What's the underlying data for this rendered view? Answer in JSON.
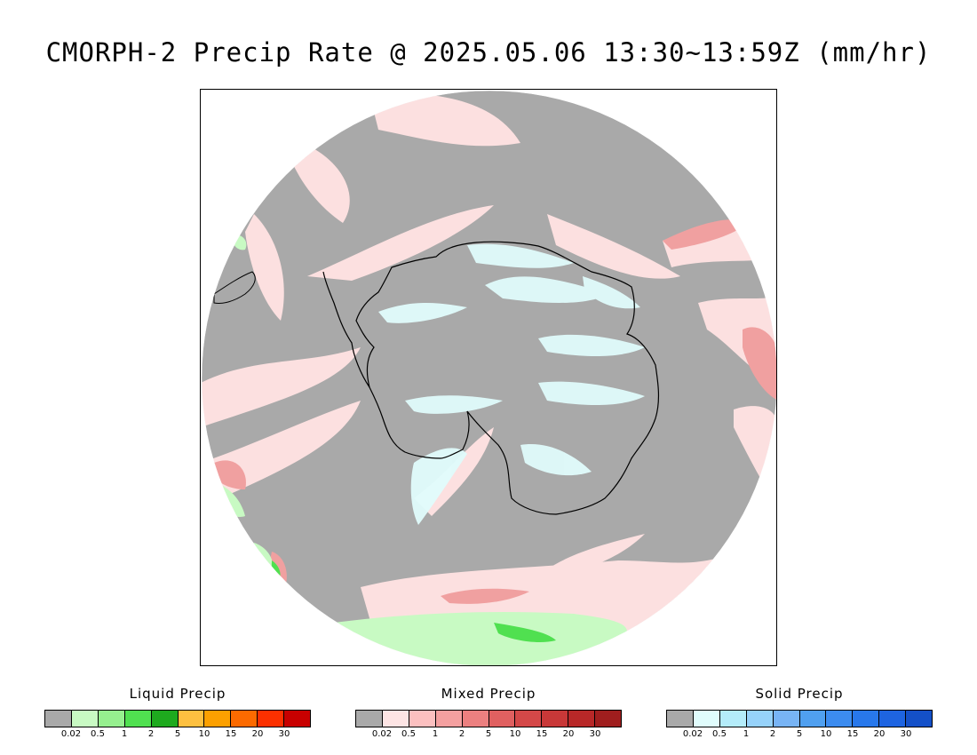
{
  "title": "CMORPH-2 Precip Rate @ 2025.05.06 13:30~13:59Z (mm/hr)",
  "map": {
    "projection": "south-polar-stereographic",
    "colors": {
      "no_precip": "#a9a9a9",
      "liquid_light": "#c8fac3",
      "liquid_mid": "#86ef80",
      "liquid_dark": "#22b022",
      "mixed_light": "#fce0e0",
      "mixed_mid": "#f0a0a0",
      "mixed_dark": "#e06060",
      "solid_light": "#e0fcfc",
      "coastline": "#000000"
    }
  },
  "legends": [
    {
      "title": "Liquid Precip",
      "colors": [
        "#a9a9a9",
        "#c8fac3",
        "#96f08f",
        "#50e050",
        "#1eaa1e",
        "#fdc040",
        "#fca000",
        "#fc6a00",
        "#fc3000",
        "#c80000"
      ],
      "ticks": [
        "0.02",
        "0.5",
        "1",
        "2",
        "5",
        "10",
        "15",
        "20",
        "30"
      ]
    },
    {
      "title": "Mixed Precip",
      "colors": [
        "#a9a9a9",
        "#fde4e4",
        "#fcc0c0",
        "#f4a0a0",
        "#ec8080",
        "#e06060",
        "#d44848",
        "#c83838",
        "#b82828",
        "#a01e1e"
      ],
      "ticks": [
        "0.02",
        "0.5",
        "1",
        "2",
        "5",
        "10",
        "15",
        "20",
        "30"
      ]
    },
    {
      "title": "Solid Precip",
      "colors": [
        "#a9a9a9",
        "#e0fcfc",
        "#b4ecfa",
        "#96d2fa",
        "#78b4f5",
        "#50a0f0",
        "#3c8cf0",
        "#2878eb",
        "#1e64e1",
        "#1450c8"
      ],
      "ticks": [
        "0.02",
        "0.5",
        "1",
        "2",
        "5",
        "10",
        "15",
        "20",
        "30"
      ]
    }
  ]
}
